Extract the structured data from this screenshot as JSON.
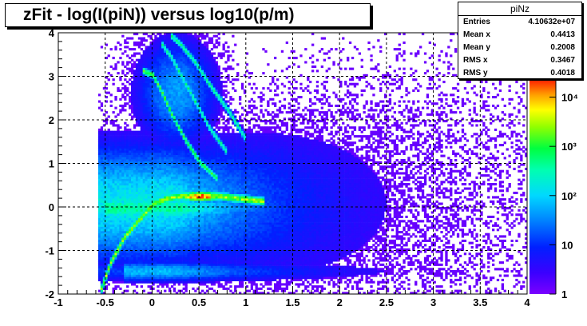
{
  "chart_data": {
    "type": "heatmap",
    "title": "zFit - log(I(piN)) versus log10(p/m)",
    "xlim": [
      -1,
      4
    ],
    "ylim": [
      -2,
      4
    ],
    "xticks": [
      "-1",
      "-0.5",
      "0",
      "0.5",
      "1",
      "1.5",
      "2",
      "2.5",
      "3",
      "3.5",
      "4"
    ],
    "yticks": [
      "-2",
      "-1",
      "0",
      "1",
      "2",
      "3",
      "4"
    ],
    "grid": true,
    "colorbar": {
      "scale": "log",
      "ticks": [
        "1",
        "10",
        "10²",
        "10³",
        "10⁴"
      ]
    },
    "stats": {
      "name": "piNz",
      "rows": [
        {
          "label": "Entries",
          "value": "4.10632e+07"
        },
        {
          "label": "Mean x",
          "value": "0.4413"
        },
        {
          "label": "Mean y",
          "value": "0.2008"
        },
        {
          "label": "RMS x",
          "value": "0.3467"
        },
        {
          "label": "RMS y",
          "value": "0.4018"
        }
      ]
    },
    "bands": [
      {
        "name": "main-band",
        "x": [
          -0.55,
          -0.45,
          -0.3,
          -0.1,
          0,
          0.2,
          0.4,
          0.6,
          0.8,
          1.0,
          1.2
        ],
        "y": [
          -1.9,
          -1.3,
          -0.7,
          -0.2,
          0.05,
          0.2,
          0.25,
          0.25,
          0.2,
          0.15,
          0.1
        ]
      },
      {
        "name": "upper-band-1",
        "x": [
          -0.1,
          0,
          0.1,
          0.2,
          0.35,
          0.5,
          0.7
        ],
        "y": [
          3.1,
          3.0,
          2.6,
          2.1,
          1.5,
          1.0,
          0.6
        ]
      },
      {
        "name": "upper-band-2",
        "x": [
          0.1,
          0.2,
          0.3,
          0.45,
          0.6,
          0.8
        ],
        "y": [
          3.7,
          3.4,
          3.0,
          2.4,
          1.8,
          1.2
        ]
      },
      {
        "name": "upper-band-3",
        "x": [
          0.2,
          0.3,
          0.45,
          0.6,
          0.8,
          1.0
        ],
        "y": [
          3.9,
          3.7,
          3.3,
          2.8,
          2.2,
          1.5
        ]
      }
    ]
  }
}
